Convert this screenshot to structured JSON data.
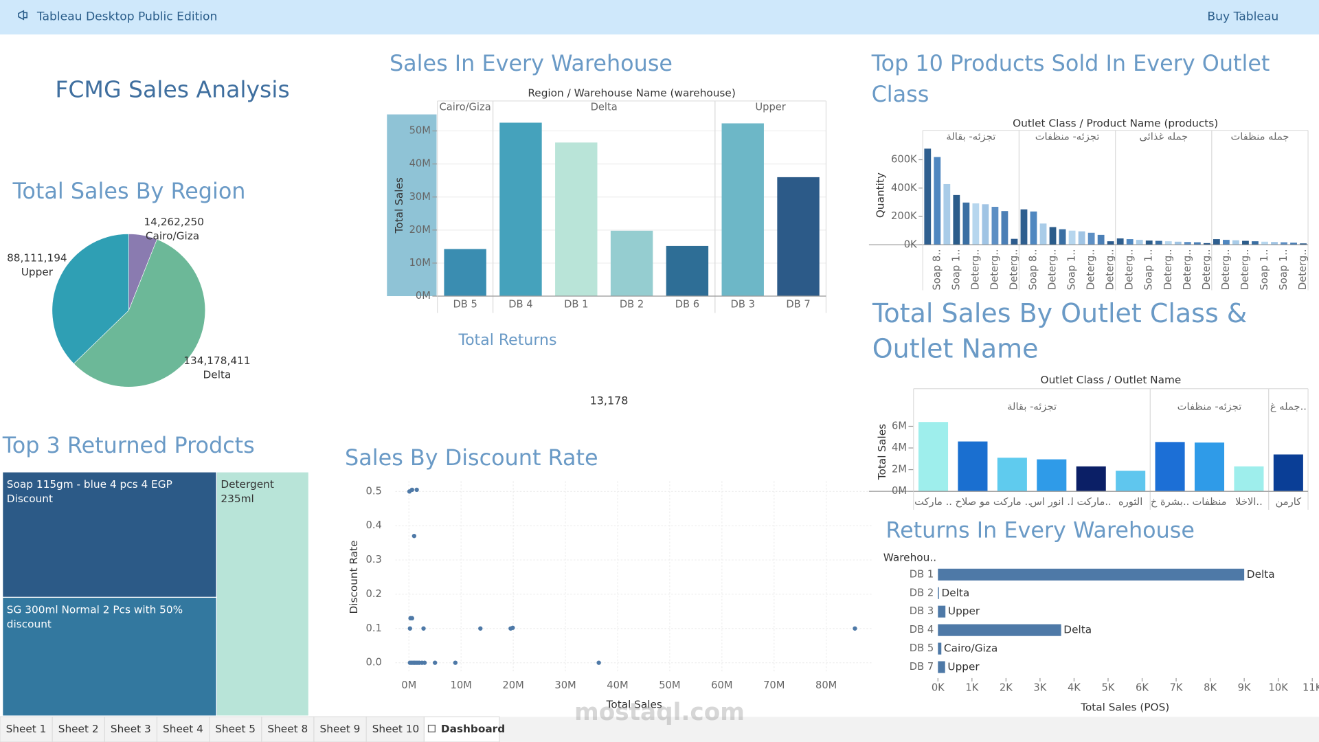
{
  "header": {
    "app_title": "Tableau Desktop Public Edition",
    "buy": "Buy Tableau"
  },
  "dashboard_title": "FCMG Sales Analysis",
  "tabs": [
    "Sheet 1",
    "Sheet 2",
    "Sheet 3",
    "Sheet 4",
    "Sheet 5",
    "Sheet 8",
    "Sheet 9",
    "Sheet 10",
    "Dashboard"
  ],
  "watermark": "mostaql.com",
  "chart_data": [
    {
      "type": "pie",
      "title": "Total Sales By Region",
      "categories": [
        "Cairo/Giza",
        "Delta",
        "Upper"
      ],
      "values": [
        14262250,
        134178411,
        88111194
      ],
      "value_labels": [
        "14,262,250",
        "134,178,411",
        "88,111,194"
      ],
      "colors": [
        "#8a7bb0",
        "#6cb898",
        "#2f9fb4"
      ]
    },
    {
      "type": "bar",
      "title": "Sales In Every Warehouse",
      "header": "Region / Warehouse Name (warehouse)",
      "y_label": "Total Sales",
      "groups": [
        {
          "name": "Cairo/Giza",
          "categories": [
            "DB 5"
          ],
          "values": [
            14262250
          ],
          "colors": [
            "#3a8db1"
          ]
        },
        {
          "name": "Delta",
          "categories": [
            "DB 4",
            "DB 1",
            "DB 2",
            "DB 6"
          ],
          "values": [
            52500000,
            46500000,
            19800000,
            15200000
          ],
          "colors": [
            "#45a2bc",
            "#b9e4d8",
            "#95cdd0",
            "#2e6e96"
          ]
        },
        {
          "name": "Upper",
          "categories": [
            "DB 3",
            "DB 7"
          ],
          "values": [
            52300000,
            36000000
          ],
          "colors": [
            "#6db7c7",
            "#2c5a88"
          ]
        }
      ],
      "ylim": [
        0,
        55000000
      ],
      "yticks": [
        {
          "value": 0,
          "label": "0M"
        },
        {
          "value": 10000000,
          "label": "10M"
        },
        {
          "value": 20000000,
          "label": "20M"
        },
        {
          "value": 30000000,
          "label": "30M"
        },
        {
          "value": 40000000,
          "label": "40M"
        },
        {
          "value": 50000000,
          "label": "50M"
        }
      ],
      "grid": true
    },
    {
      "type": "kpi",
      "title": "Total Returns",
      "value": 13178,
      "value_label": "13,178"
    },
    {
      "type": "treemap",
      "title": "Top 3 Returned Prodcts",
      "categories": [
        "Soap 115gm - blue 4 pcs 4 EGP Discount",
        "SG 300ml Normal 2 Pcs with 50% discount",
        "Detergent 235ml"
      ],
      "values": [
        37,
        35,
        31
      ],
      "colors": [
        "#2c5a87",
        "#33789f",
        "#b8e4d8"
      ]
    },
    {
      "type": "scatter",
      "title": "Sales By Discount Rate",
      "x_label": "Total Sales",
      "y_label": "Discount Rate",
      "x": [
        100000,
        600000,
        1500000,
        1000000,
        300000,
        600000,
        200000,
        2800000,
        13700000,
        19500000,
        19900000,
        85500000,
        200000,
        500000,
        800000,
        1100000,
        1400000,
        1700000,
        2000000,
        2500000,
        3000000,
        5000000,
        8900000,
        36400000
      ],
      "y": [
        0.5,
        0.505,
        0.505,
        0.37,
        0.13,
        0.13,
        0.1,
        0.1,
        0.1,
        0.1,
        0.102,
        0.1,
        0,
        0,
        0,
        0,
        0,
        0,
        0,
        0,
        0,
        0,
        0,
        0
      ],
      "color": "#4e79a7",
      "xlim": [
        -2600000,
        89000000
      ],
      "xticks": [
        {
          "value": 0,
          "label": "0M"
        },
        {
          "value": 10000000,
          "label": "10M"
        },
        {
          "value": 20000000,
          "label": "20M"
        },
        {
          "value": 30000000,
          "label": "30M"
        },
        {
          "value": 40000000,
          "label": "40M"
        },
        {
          "value": 50000000,
          "label": "50M"
        },
        {
          "value": 60000000,
          "label": "60M"
        },
        {
          "value": 70000000,
          "label": "70M"
        },
        {
          "value": 80000000,
          "label": "80M"
        }
      ],
      "ylim": [
        -0.03,
        0.53
      ],
      "yticks": [
        {
          "value": 0,
          "label": "0.0"
        },
        0.1,
        0.2,
        0.3,
        0.4,
        0.5
      ],
      "grid": true
    },
    {
      "type": "bar",
      "title": "Top 10 Products Sold In Every Outlet Class",
      "header": "Outlet Class / Product Name (products)",
      "y_label": "Quantity",
      "palette": [
        "#2f5f8f",
        "#4f87c0",
        "#a9cce8",
        "#2b5c8a",
        "#3a6fa3",
        "#b6d6ee",
        "#a0c4e4",
        "#5d8fc4",
        "#4b7fb6",
        "#2c5b8d"
      ],
      "groups": [
        {
          "name": "تجزئه- بقالة",
          "categories": [
            null,
            "Soap 8..",
            null,
            "Soap 1..",
            null,
            "Deterg..",
            null,
            "Deterg..",
            null,
            "Deterg.."
          ],
          "values": [
            678000,
            619000,
            428000,
            351000,
            298000,
            292000,
            286000,
            268000,
            238000,
            42000
          ]
        },
        {
          "name": "تجزئه- منظفات",
          "categories": [
            null,
            "Soap 8..",
            null,
            "Deterg..",
            null,
            "Soap 1..",
            null,
            "Deterg..",
            null,
            "Deterg.."
          ],
          "values": [
            250000,
            235000,
            150000,
            125000,
            110000,
            100000,
            95000,
            85000,
            70000,
            25000
          ]
        },
        {
          "name": "جمله غذائى",
          "categories": [
            null,
            "Deterg..",
            null,
            "Soap 1..",
            null,
            "Deterg..",
            null,
            "Deterg..",
            null,
            "Deterg.."
          ],
          "values": [
            45000,
            40000,
            35000,
            30000,
            28000,
            25000,
            22000,
            20000,
            18000,
            12000
          ]
        },
        {
          "name": "جمله منظفات",
          "categories": [
            null,
            "Deterg..",
            null,
            "Deterg..",
            null,
            "Soap 1..",
            null,
            "Soap 1..",
            null,
            "Deterg.."
          ],
          "values": [
            40000,
            35000,
            32000,
            28000,
            25000,
            22000,
            20000,
            18000,
            15000,
            10000
          ]
        }
      ],
      "ylim": [
        0,
        700000
      ],
      "yticks": [
        {
          "value": 0,
          "label": "0K"
        },
        {
          "value": 200000,
          "label": "200K"
        },
        {
          "value": 400000,
          "label": "400K"
        },
        {
          "value": 600000,
          "label": "600K"
        }
      ],
      "grid": false
    },
    {
      "type": "bar",
      "title": "Total Sales By Outlet Class & Outlet Name",
      "header": "Outlet Class / Outlet Name",
      "y_label": "Total Sales",
      "groups": [
        {
          "name": "تجزئه- بقالة",
          "categories": [
            "ماركت ..",
            "مو صلاح",
            "ماركت ..",
            "انور اس ..",
            "ماركت ا..",
            "الثوره"
          ],
          "values": [
            6400000,
            4600000,
            3100000,
            2950000,
            2300000,
            1900000
          ],
          "colors": [
            "#9eeeec",
            "#1a6fd0",
            "#5fcbee",
            "#2f9be8",
            "#0b1f66",
            "#5fc6ee"
          ]
        },
        {
          "name": "تجزئه- منظفات",
          "categories": [
            "بشرة خ..",
            "منظفات",
            "الاخلا.."
          ],
          "values": [
            4550000,
            4500000,
            2300000
          ],
          "colors": [
            "#1c6fd6",
            "#2f9be8",
            "#9eeeec"
          ]
        },
        {
          "name": "جمله غ..",
          "categories": [
            "كارمن"
          ],
          "values": [
            3400000
          ],
          "colors": [
            "#0a3e96"
          ]
        }
      ],
      "ylim": [
        0,
        7300000
      ],
      "yticks": [
        {
          "value": 0,
          "label": "0M"
        },
        {
          "value": 2000000,
          "label": "2M"
        },
        {
          "value": 4000000,
          "label": "4M"
        },
        {
          "value": 6000000,
          "label": "6M"
        }
      ],
      "grid": false
    },
    {
      "type": "hbar",
      "title": "Returns In Every Warehouse",
      "column_header": "Warehou..",
      "x_label": "Total Sales (POS)",
      "categories": [
        "DB 1",
        "DB 2",
        "DB 3",
        "DB 4",
        "DB 5",
        "DB 7"
      ],
      "values": [
        9000,
        30,
        220,
        3620,
        100,
        210
      ],
      "regions": [
        "Delta",
        "Delta",
        "Upper",
        "Delta",
        "Cairo/Giza",
        "Upper"
      ],
      "color": "#4e79a7",
      "xlim": [
        0,
        11000
      ],
      "xticks": [
        {
          "value": 0,
          "label": "0K"
        },
        {
          "value": 1000,
          "label": "1K"
        },
        {
          "value": 2000,
          "label": "2K"
        },
        {
          "value": 3000,
          "label": "3K"
        },
        {
          "value": 4000,
          "label": "4K"
        },
        {
          "value": 5000,
          "label": "5K"
        },
        {
          "value": 6000,
          "label": "6K"
        },
        {
          "value": 7000,
          "label": "7K"
        },
        {
          "value": 8000,
          "label": "8K"
        },
        {
          "value": 9000,
          "label": "9K"
        },
        {
          "value": 10000,
          "label": "10K"
        },
        {
          "value": 11000,
          "label": "11K"
        }
      ]
    }
  ]
}
